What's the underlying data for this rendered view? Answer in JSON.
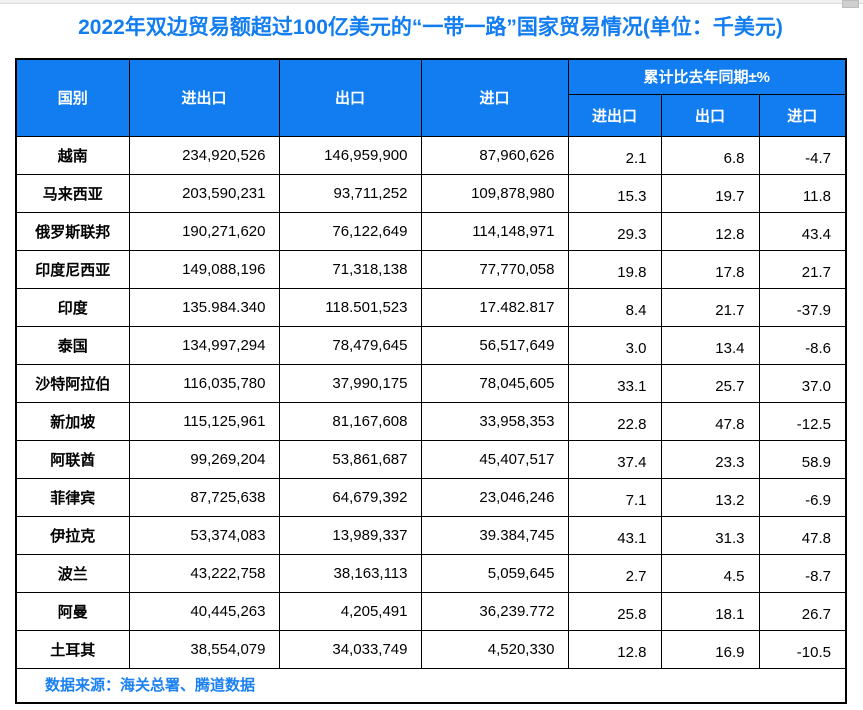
{
  "page": {
    "title": "2022年双边贸易额超过100亿美元的“一带一路”国家贸易情况(单位：千美元)",
    "source_note": "数据来源：海关总署、腾道数据"
  },
  "colors": {
    "accent_blue": "#117df0",
    "header_text": "#ffffff",
    "border": "#000000",
    "body_text": "#000000"
  },
  "table": {
    "headers": {
      "country": "国别",
      "total": "进出口",
      "export": "出口",
      "import": "进口",
      "yoy_group": "累计比去年同期±%",
      "yoy_total": "进出口",
      "yoy_export": "出口",
      "yoy_import": "进口"
    },
    "rows": [
      {
        "country": "越南",
        "total": "234,920,526",
        "export": "146,959,900",
        "import": "87,960,626",
        "yoy_total": "2.1",
        "yoy_export": "6.8",
        "yoy_import": "-4.7"
      },
      {
        "country": "马来西亚",
        "total": "203,590,231",
        "export": "93,711,252",
        "import": "109,878,980",
        "yoy_total": "15.3",
        "yoy_export": "19.7",
        "yoy_import": "11.8"
      },
      {
        "country": "俄罗斯联邦",
        "total": "190,271,620",
        "export": "76,122,649",
        "import": "114,148,971",
        "yoy_total": "29.3",
        "yoy_export": "12.8",
        "yoy_import": "43.4"
      },
      {
        "country": "印度尼西亚",
        "total": "149,088,196",
        "export": "71,318,138",
        "import": "77,770,058",
        "yoy_total": "19.8",
        "yoy_export": "17.8",
        "yoy_import": "21.7"
      },
      {
        "country": "印度",
        "total": "135.984.340",
        "export": "118.501,523",
        "import": "17.482.817",
        "yoy_total": "8.4",
        "yoy_export": "21.7",
        "yoy_import": "-37.9"
      },
      {
        "country": "泰国",
        "total": "134,997,294",
        "export": "78,479,645",
        "import": "56,517,649",
        "yoy_total": "3.0",
        "yoy_export": "13.4",
        "yoy_import": "-8.6"
      },
      {
        "country": "沙特阿拉伯",
        "total": "116,035,780",
        "export": "37,990,175",
        "import": "78,045,605",
        "yoy_total": "33.1",
        "yoy_export": "25.7",
        "yoy_import": "37.0"
      },
      {
        "country": "新加坡",
        "total": "115,125,961",
        "export": "81,167,608",
        "import": "33,958,353",
        "yoy_total": "22.8",
        "yoy_export": "47.8",
        "yoy_import": "-12.5"
      },
      {
        "country": "阿联酋",
        "total": "99,269,204",
        "export": "53,861,687",
        "import": "45,407,517",
        "yoy_total": "37.4",
        "yoy_export": "23.3",
        "yoy_import": "58.9"
      },
      {
        "country": "菲律宾",
        "total": "87,725,638",
        "export": "64,679,392",
        "import": "23,046,246",
        "yoy_total": "7.1",
        "yoy_export": "13.2",
        "yoy_import": "-6.9"
      },
      {
        "country": "伊拉克",
        "total": "53,374,083",
        "export": "13,989,337",
        "import": "39.384,745",
        "yoy_total": "43.1",
        "yoy_export": "31.3",
        "yoy_import": "47.8"
      },
      {
        "country": "波兰",
        "total": "43,222,758",
        "export": "38,163,113",
        "import": "5,059,645",
        "yoy_total": "2.7",
        "yoy_export": "4.5",
        "yoy_import": "-8.7"
      },
      {
        "country": "阿曼",
        "total": "40,445,263",
        "export": "4,205,491",
        "import": "36,239.772",
        "yoy_total": "25.8",
        "yoy_export": "18.1",
        "yoy_import": "26.7"
      },
      {
        "country": "土耳其",
        "total": "38,554,079",
        "export": "34,033,749",
        "import": "4,520,330",
        "yoy_total": "12.8",
        "yoy_export": "16.9",
        "yoy_import": "-10.5"
      }
    ]
  },
  "chart_data": {
    "type": "table",
    "title": "2022年双边贸易额超过100亿美元的“一带一路”国家贸易情况(单位：千美元)",
    "columns": [
      "国别",
      "进出口",
      "出口",
      "进口",
      "累计比去年同期±% 进出口",
      "累计比去年同期±% 出口",
      "累计比去年同期±% 进口"
    ],
    "rows": [
      [
        "越南",
        "234,920,526",
        "146,959,900",
        "87,960,626",
        2.1,
        6.8,
        -4.7
      ],
      [
        "马来西亚",
        "203,590,231",
        "93,711,252",
        "109,878,980",
        15.3,
        19.7,
        11.8
      ],
      [
        "俄罗斯联邦",
        "190,271,620",
        "76,122,649",
        "114,148,971",
        29.3,
        12.8,
        43.4
      ],
      [
        "印度尼西亚",
        "149,088,196",
        "71,318,138",
        "77,770,058",
        19.8,
        17.8,
        21.7
      ],
      [
        "印度",
        "135.984.340",
        "118.501,523",
        "17.482.817",
        8.4,
        21.7,
        -37.9
      ],
      [
        "泰国",
        "134,997,294",
        "78,479,645",
        "56,517,649",
        3.0,
        13.4,
        -8.6
      ],
      [
        "沙特阿拉伯",
        "116,035,780",
        "37,990,175",
        "78,045,605",
        33.1,
        25.7,
        37.0
      ],
      [
        "新加坡",
        "115,125,961",
        "81,167,608",
        "33,958,353",
        22.8,
        47.8,
        -12.5
      ],
      [
        "阿联酋",
        "99,269,204",
        "53,861,687",
        "45,407,517",
        37.4,
        23.3,
        58.9
      ],
      [
        "菲律宾",
        "87,725,638",
        "64,679,392",
        "23,046,246",
        7.1,
        13.2,
        -6.9
      ],
      [
        "伊拉克",
        "53,374,083",
        "13,989,337",
        "39.384,745",
        43.1,
        31.3,
        47.8
      ],
      [
        "波兰",
        "43,222,758",
        "38,163,113",
        "5,059,645",
        2.7,
        4.5,
        -8.7
      ],
      [
        "阿曼",
        "40,445,263",
        "4,205,491",
        "36,239.772",
        25.8,
        18.1,
        26.7
      ],
      [
        "土耳其",
        "38,554,079",
        "34,033,749",
        "4,520,330",
        12.8,
        16.9,
        -10.5
      ]
    ],
    "source_note": "数据来源：海关总署、腾道数据"
  }
}
